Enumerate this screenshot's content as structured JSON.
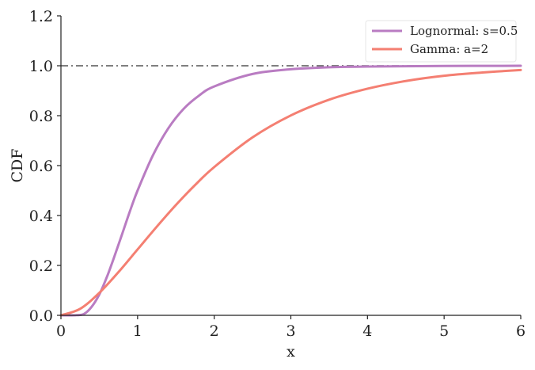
{
  "chart_data": {
    "type": "line",
    "title": "",
    "xlabel": "x",
    "ylabel": "CDF",
    "xlim": [
      0,
      6
    ],
    "ylim": [
      0,
      1.2
    ],
    "x_ticks": [
      "0",
      "1",
      "2",
      "3",
      "4",
      "5",
      "6"
    ],
    "y_ticks": [
      "0.0",
      "0.2",
      "0.4",
      "0.6",
      "0.8",
      "1.0",
      "1.2"
    ],
    "grid": false,
    "legend_position": "top-right",
    "reference_line": {
      "y": 1.0,
      "style": "dash-dot",
      "color": "#555555"
    },
    "series": [
      {
        "name": "Lognormal: s=0.5",
        "color": "#b97cc2",
        "x": [
          0,
          0.1,
          0.2,
          0.3,
          0.4,
          0.5,
          0.6,
          0.7,
          0.8,
          0.9,
          1.0,
          1.2,
          1.4,
          1.6,
          1.8,
          2.0,
          2.5,
          3.0,
          3.5,
          4.0,
          5.0,
          6.0
        ],
        "y": [
          0,
          0.0,
          0.0006,
          0.0053,
          0.034,
          0.083,
          0.154,
          0.238,
          0.327,
          0.417,
          0.5,
          0.641,
          0.749,
          0.827,
          0.88,
          0.917,
          0.967,
          0.986,
          0.994,
          0.997,
          0.999,
          1.0
        ]
      },
      {
        "name": "Gamma: a=2",
        "color": "#f47f72",
        "x": [
          0,
          0.25,
          0.5,
          0.75,
          1.0,
          1.25,
          1.5,
          1.75,
          2.0,
          2.5,
          3.0,
          3.5,
          4.0,
          4.5,
          5.0,
          5.5,
          6.0
        ],
        "y": [
          0,
          0.026,
          0.09,
          0.173,
          0.264,
          0.355,
          0.442,
          0.522,
          0.594,
          0.713,
          0.801,
          0.864,
          0.908,
          0.939,
          0.96,
          0.973,
          0.983
        ]
      }
    ]
  }
}
